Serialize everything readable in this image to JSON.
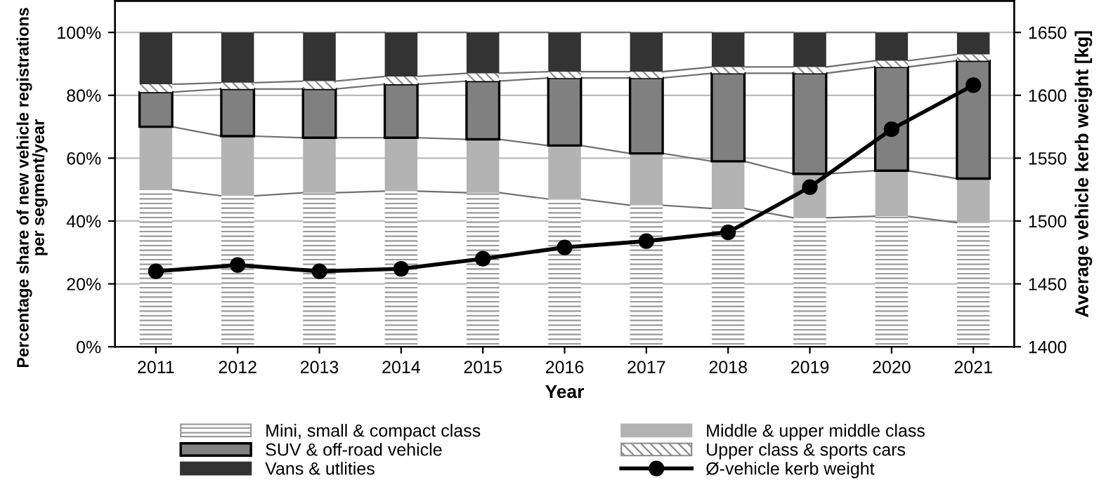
{
  "chart_data": {
    "type": "bar",
    "stacked": true,
    "xlabel": "Year",
    "ylabel": "Percentage share of new vehicle registrations\nper segment/year",
    "y2label": "Average vehicle kerb weight [kg]",
    "categories": [
      "2011",
      "2012",
      "2013",
      "2014",
      "2015",
      "2016",
      "2017",
      "2018",
      "2019",
      "2020",
      "2021"
    ],
    "series": [
      {
        "name": "Mini, small & compact class",
        "color": "#9a9a9a",
        "values": [
          50,
          48,
          49,
          49.5,
          49,
          47,
          45,
          44,
          41,
          41.5,
          39.5
        ]
      },
      {
        "name": "Middle & upper middle class",
        "color": "#b3b3b3",
        "values": [
          20,
          19,
          17.5,
          17,
          17,
          17,
          16.5,
          15,
          14,
          14.5,
          14
        ]
      },
      {
        "name": "SUV & off-road vehicle",
        "color": "#808080",
        "values": [
          11,
          15,
          15.5,
          17,
          18.5,
          21.5,
          24,
          28,
          32,
          33,
          37.5
        ]
      },
      {
        "name": "Upper class & sports cars",
        "color": "#8c8c8c",
        "values": [
          2.5,
          2,
          2.5,
          2.5,
          2.5,
          2,
          2,
          2,
          2,
          2,
          2
        ]
      },
      {
        "name": "Vans & utlities",
        "color": "#333333",
        "values": [
          16.5,
          16,
          15.5,
          14,
          13,
          12.5,
          12.5,
          11,
          11,
          9,
          7
        ]
      },
      {
        "name": "Ø-vehicle kerb weight",
        "type": "line",
        "axis": "y2",
        "color": "#000000",
        "marker": "circle",
        "values": [
          1460,
          1465,
          1460,
          1462,
          1470,
          1479,
          1484,
          1491,
          1527,
          1573,
          1608
        ]
      }
    ],
    "ylim": [
      0,
      110
    ],
    "yticks": [
      {
        "value": 0,
        "label": "0%"
      },
      {
        "value": 20,
        "label": "20%"
      },
      {
        "value": 40,
        "label": "40%"
      },
      {
        "value": 60,
        "label": "60%"
      },
      {
        "value": 80,
        "label": "80%"
      },
      {
        "value": 100,
        "label": "100%"
      }
    ],
    "y2lim": [
      1400,
      1675
    ],
    "y2ticks": [
      1400,
      1450,
      1500,
      1550,
      1600,
      1650
    ],
    "grid": "y",
    "legend": "bottom"
  }
}
